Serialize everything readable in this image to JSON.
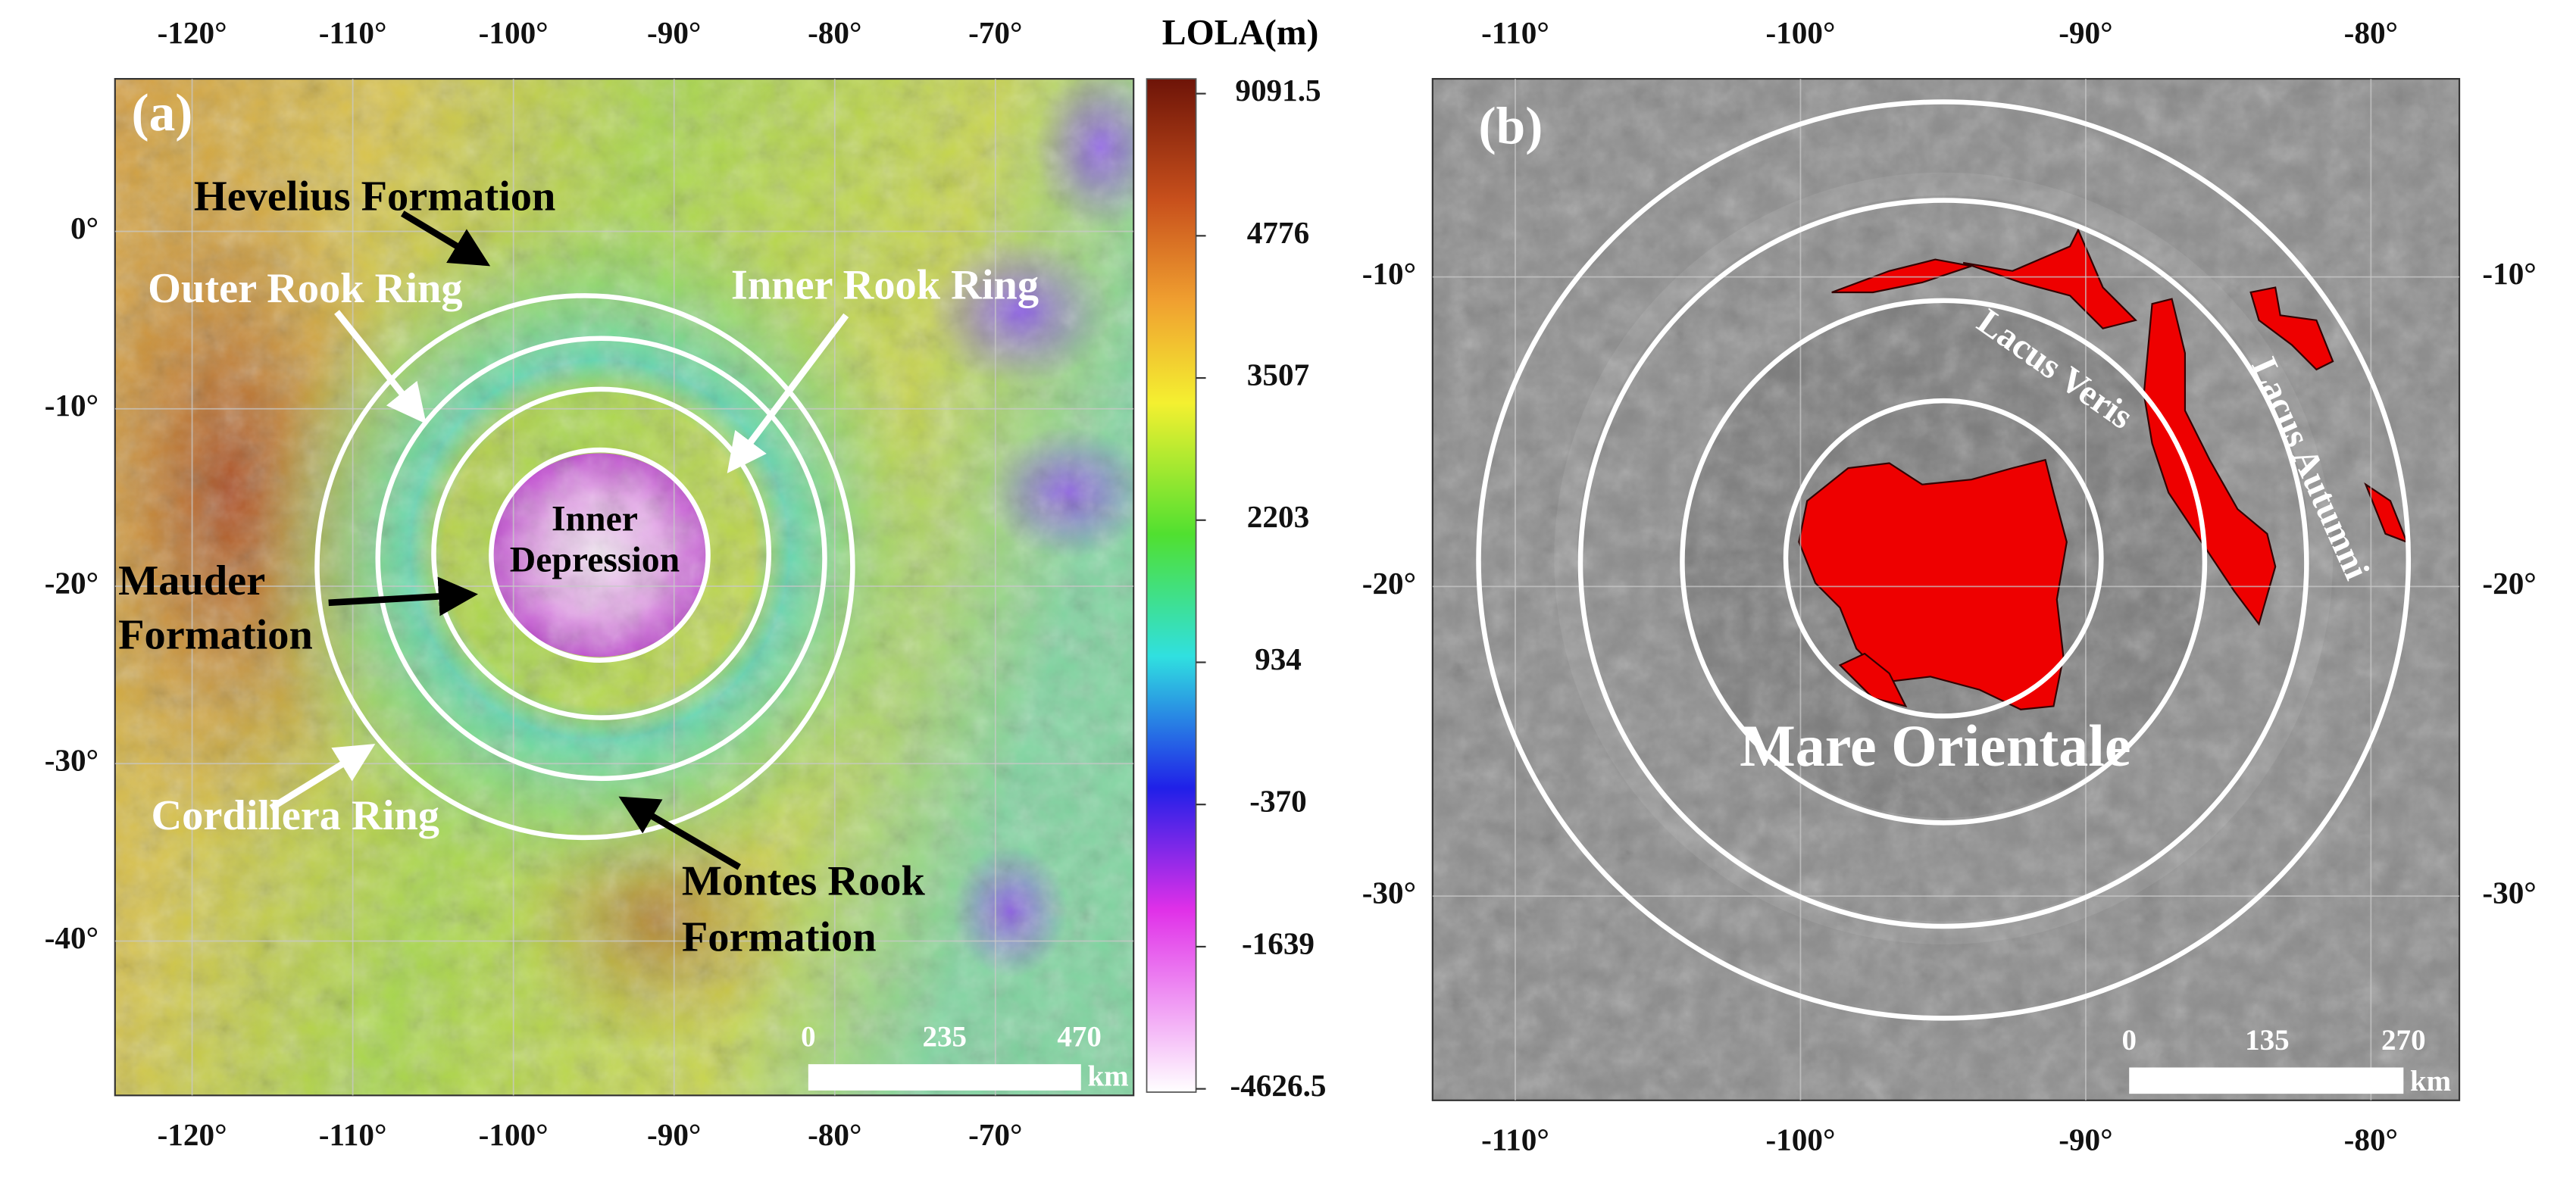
{
  "panels": [
    {
      "label": "(a)",
      "xlim": [
        -124.8,
        -61.4
      ],
      "ylim": [
        8.6,
        -48.7
      ],
      "lon_ticks": [
        {
          "value": -120,
          "label": "-120°"
        },
        {
          "value": -110,
          "label": "-110°"
        },
        {
          "value": -100,
          "label": "-100°"
        },
        {
          "value": -90,
          "label": "-90°"
        },
        {
          "value": -80,
          "label": "-80°"
        },
        {
          "value": -70,
          "label": "-70°"
        }
      ],
      "lat_ticks": [
        {
          "value": 0,
          "label": "0°"
        },
        {
          "value": -10,
          "label": "-10°"
        },
        {
          "value": -20,
          "label": "-20°"
        },
        {
          "value": -30,
          "label": "-30°"
        },
        {
          "value": -40,
          "label": "-40°"
        }
      ],
      "annotations": {
        "hevelius": "Hevelius Formation",
        "outer_rook": "Outer Rook Ring",
        "inner_rook": "Inner Rook Ring",
        "inner_depression": [
          "Inner",
          "Depression"
        ],
        "mauder": [
          "Mauder",
          "Formation"
        ],
        "cordillera": "Cordillera Ring",
        "montes_rook": [
          "Montes Rook",
          "Formation"
        ]
      },
      "scale_bar": {
        "labels": [
          "0",
          "235",
          "470"
        ],
        "unit": "km"
      }
    },
    {
      "label": "(b)",
      "xlim": [
        -112.9,
        -76.9
      ],
      "ylim": [
        -3.6,
        -36.6
      ],
      "lon_ticks": [
        {
          "value": -110,
          "label": "-110°"
        },
        {
          "value": -100,
          "label": "-100°"
        },
        {
          "value": -90,
          "label": "-90°"
        },
        {
          "value": -80,
          "label": "-80°"
        }
      ],
      "lat_ticks": [
        {
          "value": -10,
          "label": "-10°"
        },
        {
          "value": -20,
          "label": "-20°"
        },
        {
          "value": -30,
          "label": "-30°"
        }
      ],
      "annotations": {
        "lacus_veris": "Lacus Veris",
        "lacus_autumni": "Lacus Autumni",
        "mare_orientale": "Mare Orientale"
      },
      "scale_bar": {
        "labels": [
          "0",
          "135",
          "270"
        ],
        "unit": "km"
      }
    }
  ],
  "colorbar": {
    "title": "LOLA(m)",
    "ticks": [
      9091.5,
      4776,
      3507,
      2203,
      934,
      -370,
      -1639,
      -4626.5
    ]
  }
}
